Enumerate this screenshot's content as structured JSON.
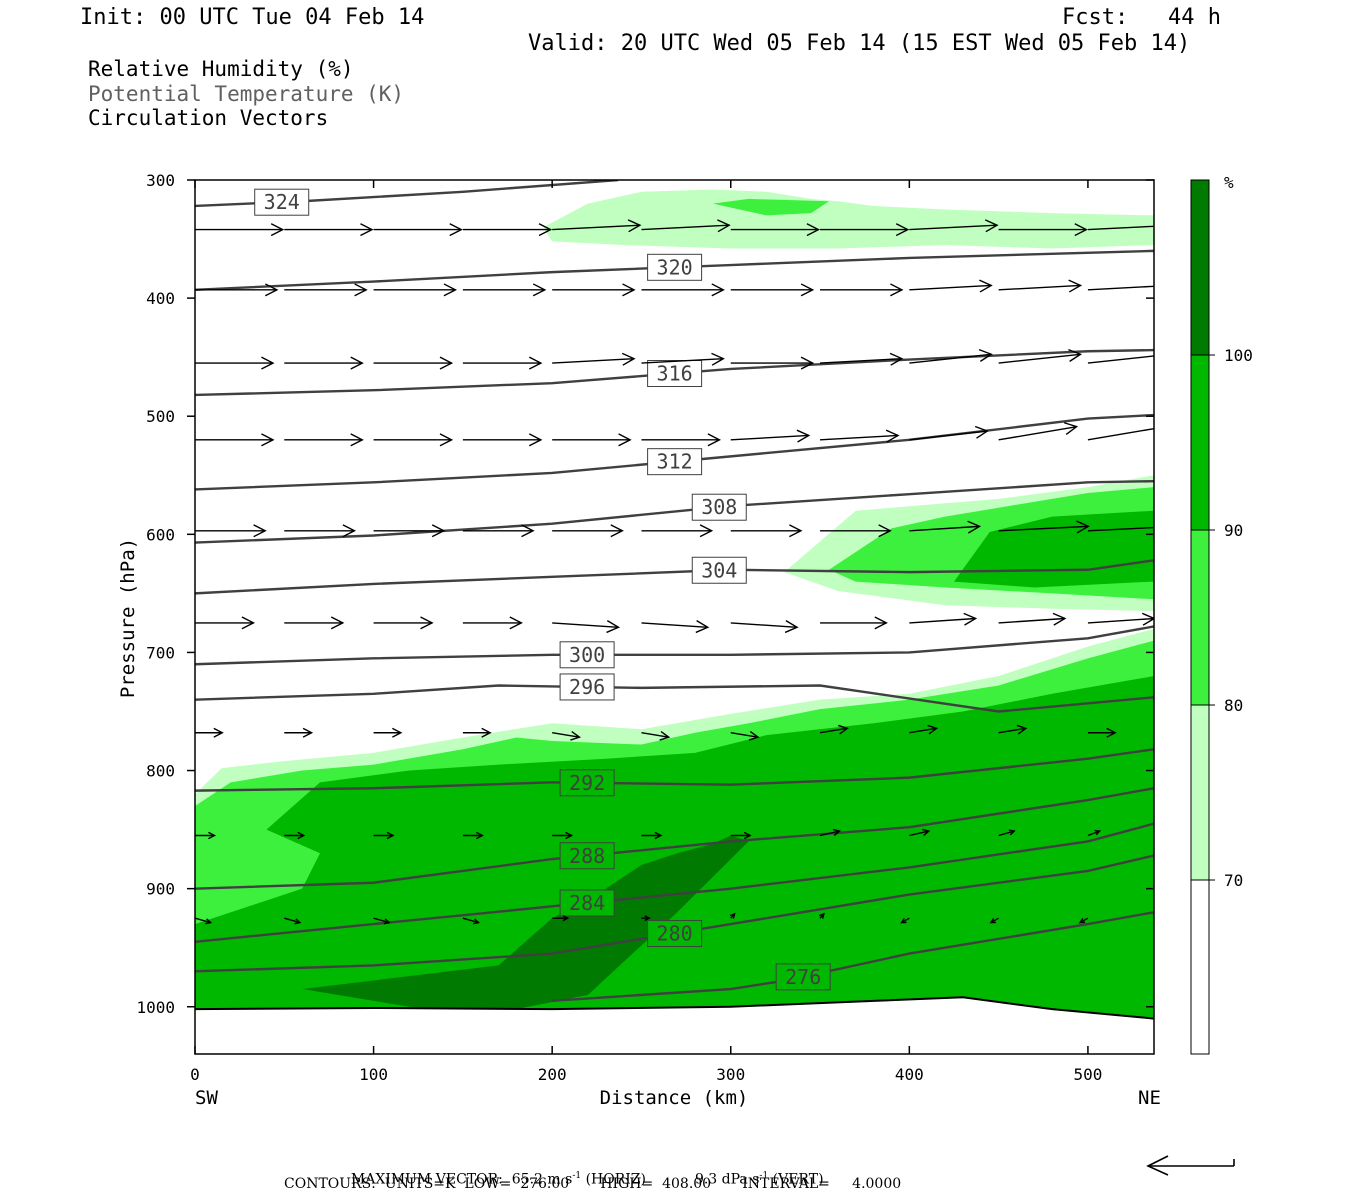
{
  "header": {
    "init": "Init: 00 UTC Tue 04 Feb 14",
    "fcst": "Fcst:   44 h",
    "valid": "Valid: 20 UTC Wed 05 Feb 14 (15 EST Wed 05 Feb 14)"
  },
  "fields": {
    "rh": "Relative Humidity (%)",
    "theta": "Potential Temperature (K)",
    "vectors": "Circulation Vectors"
  },
  "footer": {
    "max_vector_label": "MAXIMUM VECTOR:",
    "max_horiz": "65.2 m s",
    "horiz_exp": "-1",
    "horiz_tag": "(HORIZ)",
    "max_vert": "9.3 dPa s",
    "vert_exp": "-1",
    "vert_tag": "(VERT)",
    "contours": "CONTOURS:  UNITS=K  LOW=  276.00       HIGH=  408.00       INTERVAL=     4.0000"
  },
  "colors": {
    "rh_70_80": "#c0ffc0",
    "rh_80_90": "#3ef03e",
    "rh_90_100": "#00b800",
    "rh_100": "#007a00",
    "theta_line": "#404040",
    "vector": "#000000"
  },
  "chart_data": {
    "type": "contour",
    "xlabel": "Distance (km)",
    "ylabel": "Pressure (hPa)",
    "xlim": [
      0,
      537
    ],
    "ylim": [
      1040,
      300
    ],
    "x_ticks": [
      0,
      100,
      200,
      300,
      400,
      500
    ],
    "y_ticks": [
      300,
      400,
      500,
      600,
      700,
      800,
      900,
      1000
    ],
    "x_endpoints": {
      "left": "SW",
      "right": "NE"
    },
    "colorbar": {
      "unit": "%",
      "levels": [
        70,
        80,
        90,
        100
      ]
    },
    "rh_regions": [
      {
        "level": 70,
        "x": [
          195,
          220,
          250,
          290,
          320,
          345,
          360,
          380,
          420,
          480,
          537,
          537,
          480,
          420,
          360,
          300,
          240,
          200,
          195
        ],
        "p": [
          340,
          320,
          310,
          308,
          310,
          316,
          318,
          322,
          325,
          328,
          330,
          355,
          358,
          355,
          358,
          358,
          355,
          352,
          340
        ]
      },
      {
        "level": 80,
        "x": [
          290,
          310,
          355,
          345,
          320,
          290
        ],
        "p": [
          320,
          316,
          318,
          328,
          330,
          320
        ]
      },
      {
        "level": 70,
        "x": [
          330,
          370,
          410,
          450,
          500,
          537,
          537,
          480,
          420,
          360,
          330
        ],
        "p": [
          632,
          580,
          575,
          570,
          560,
          550,
          665,
          663,
          660,
          648,
          632
        ]
      },
      {
        "level": 80,
        "x": [
          355,
          390,
          420,
          460,
          500,
          537,
          537,
          480,
          420,
          370,
          355
        ],
        "p": [
          630,
          595,
          585,
          575,
          565,
          560,
          655,
          650,
          645,
          640,
          630
        ]
      },
      {
        "level": 90,
        "x": [
          425,
          445,
          480,
          537,
          537,
          470,
          425
        ],
        "p": [
          640,
          598,
          585,
          580,
          640,
          645,
          640
        ]
      },
      {
        "level": 70,
        "x": [
          0,
          15,
          50,
          100,
          150,
          200,
          250,
          300,
          350,
          400,
          450,
          500,
          537,
          537,
          0
        ],
        "p": [
          820,
          798,
          792,
          785,
          772,
          760,
          765,
          752,
          740,
          735,
          720,
          695,
          680,
          1005,
          1005
        ]
      },
      {
        "level": 80,
        "x": [
          0,
          20,
          60,
          100,
          150,
          180,
          200,
          250,
          280,
          310,
          350,
          400,
          450,
          500,
          537,
          537,
          0
        ],
        "p": [
          830,
          810,
          800,
          795,
          782,
          772,
          775,
          778,
          768,
          760,
          748,
          740,
          728,
          705,
          690,
          1005,
          1005
        ]
      },
      {
        "level": 90,
        "x": [
          40,
          70,
          120,
          170,
          230,
          280,
          320,
          380,
          430,
          480,
          537,
          537,
          120,
          0,
          0,
          60,
          70,
          40
        ],
        "p": [
          850,
          810,
          800,
          795,
          790,
          785,
          770,
          760,
          750,
          735,
          720,
          1010,
          1010,
          1005,
          930,
          900,
          870,
          850
        ]
      },
      {
        "level": 100,
        "x": [
          60,
          170,
          200,
          230,
          250,
          270,
          290,
          300,
          310,
          270,
          220,
          170,
          120,
          60
        ],
        "p": [
          985,
          965,
          925,
          900,
          880,
          870,
          862,
          855,
          860,
          920,
          990,
          1005,
          1000,
          985
        ]
      }
    ],
    "theta_contours": [
      {
        "theta": 324,
        "x": [
          0,
          60,
          150,
          237
        ],
        "p": [
          322,
          318,
          310,
          300
        ],
        "label_x": 48
      },
      {
        "theta": 320,
        "x": [
          0,
          100,
          200,
          300,
          400,
          537
        ],
        "p": [
          393,
          386,
          378,
          372,
          366,
          360
        ],
        "label_x": 268
      },
      {
        "theta": 316,
        "x": [
          0,
          100,
          200,
          300,
          400,
          500,
          537
        ],
        "p": [
          482,
          478,
          472,
          460,
          452,
          445,
          444
        ],
        "label_x": 268
      },
      {
        "theta": 312,
        "x": [
          0,
          100,
          200,
          300,
          400,
          500,
          537
        ],
        "p": [
          562,
          556,
          548,
          534,
          520,
          502,
          499
        ],
        "label_x": 268
      },
      {
        "theta": 308,
        "x": [
          0,
          100,
          200,
          300,
          400,
          500,
          537
        ],
        "p": [
          607,
          601,
          591,
          576,
          566,
          556,
          555
        ],
        "label_x": 293
      },
      {
        "theta": 304,
        "x": [
          0,
          100,
          200,
          300,
          400,
          500,
          537
        ],
        "p": [
          650,
          642,
          636,
          630,
          632,
          630,
          622
        ],
        "label_x": 293
      },
      {
        "theta": 300,
        "x": [
          0,
          100,
          200,
          300,
          400,
          500,
          537
        ],
        "p": [
          710,
          705,
          702,
          702,
          700,
          688,
          678
        ],
        "label_x": 219
      },
      {
        "theta": 296,
        "x": [
          0,
          100,
          170,
          250,
          350,
          450,
          537
        ],
        "p": [
          740,
          735,
          728,
          730,
          728,
          750,
          738
        ],
        "label_x": 219
      },
      {
        "theta": 292,
        "x": [
          0,
          100,
          200,
          300,
          400,
          500,
          537
        ],
        "p": [
          817,
          815,
          810,
          812,
          806,
          790,
          782
        ],
        "label_x": 219
      },
      {
        "theta": 288,
        "x": [
          0,
          100,
          200,
          300,
          400,
          500,
          537
        ],
        "p": [
          900,
          895,
          875,
          860,
          848,
          825,
          815
        ],
        "label_x": 219
      },
      {
        "theta": 284,
        "x": [
          0,
          100,
          200,
          300,
          400,
          500,
          537
        ],
        "p": [
          945,
          930,
          915,
          900,
          882,
          860,
          845
        ],
        "label_x": 219
      },
      {
        "theta": 280,
        "x": [
          0,
          100,
          200,
          300,
          400,
          500,
          537
        ],
        "p": [
          970,
          965,
          955,
          930,
          905,
          885,
          872
        ],
        "label_x": 268
      },
      {
        "theta": 276,
        "x": [
          200,
          300,
          330,
          400,
          500,
          537
        ],
        "p": [
          995,
          985,
          978,
          955,
          930,
          920
        ],
        "label_x": 340
      }
    ],
    "surface": {
      "x": [
        0,
        100,
        200,
        300,
        380,
        430,
        480,
        537
      ],
      "p": [
        1002,
        1001,
        1002,
        1000,
        995,
        992,
        1002,
        1010
      ]
    },
    "vectors": {
      "x": [
        0,
        50,
        100,
        150,
        200,
        250,
        300,
        350,
        400,
        450,
        500
      ],
      "rows": [
        {
          "p": 342,
          "u": [
            45,
            45,
            45,
            45,
            45,
            45,
            45,
            45,
            45,
            45,
            45
          ],
          "w": [
            0,
            0,
            0,
            0,
            -2,
            -2,
            0,
            0,
            -2,
            0,
            -2
          ]
        },
        {
          "p": 393,
          "u": [
            42,
            42,
            42,
            42,
            42,
            42,
            42,
            42,
            42,
            42,
            42
          ],
          "w": [
            0,
            0,
            0,
            0,
            0,
            0,
            0,
            0,
            -2,
            -2,
            -2
          ]
        },
        {
          "p": 455,
          "u": [
            40,
            40,
            40,
            40,
            42,
            42,
            42,
            42,
            42,
            42,
            42
          ],
          "w": [
            0,
            0,
            0,
            0,
            -2,
            -2,
            0,
            -2,
            -4,
            -4,
            -4
          ]
        },
        {
          "p": 520,
          "u": [
            40,
            40,
            40,
            40,
            40,
            40,
            40,
            40,
            40,
            40,
            40
          ],
          "w": [
            0,
            0,
            0,
            0,
            0,
            0,
            -2,
            -2,
            -4,
            -6,
            -6
          ]
        },
        {
          "p": 597,
          "u": [
            36,
            36,
            36,
            36,
            36,
            36,
            36,
            36,
            36,
            46,
            46
          ],
          "w": [
            0,
            0,
            0,
            0,
            0,
            0,
            0,
            0,
            -2,
            -2,
            -2
          ]
        },
        {
          "p": 675,
          "u": [
            30,
            30,
            30,
            30,
            34,
            34,
            34,
            34,
            34,
            34,
            34
          ],
          "w": [
            0,
            0,
            0,
            0,
            2,
            2,
            2,
            0,
            -2,
            -2,
            -2
          ]
        },
        {
          "p": 768,
          "u": [
            14,
            14,
            14,
            14,
            14,
            14,
            14,
            14,
            14,
            14,
            14
          ],
          "w": [
            0,
            0,
            0,
            0,
            2,
            2,
            2,
            -2,
            -2,
            -2,
            0
          ]
        },
        {
          "p": 855,
          "u": [
            10,
            10,
            10,
            10,
            10,
            10,
            10,
            10,
            10,
            8,
            6
          ],
          "w": [
            0,
            0,
            0,
            0,
            0,
            0,
            0,
            -2,
            -2,
            -2,
            -2
          ]
        },
        {
          "p": 925,
          "u": [
            8,
            8,
            8,
            8,
            8,
            4,
            2,
            2,
            -4,
            -4,
            -4
          ],
          "w": [
            2,
            2,
            2,
            2,
            0,
            0,
            -2,
            -2,
            2,
            2,
            2
          ]
        }
      ]
    }
  }
}
